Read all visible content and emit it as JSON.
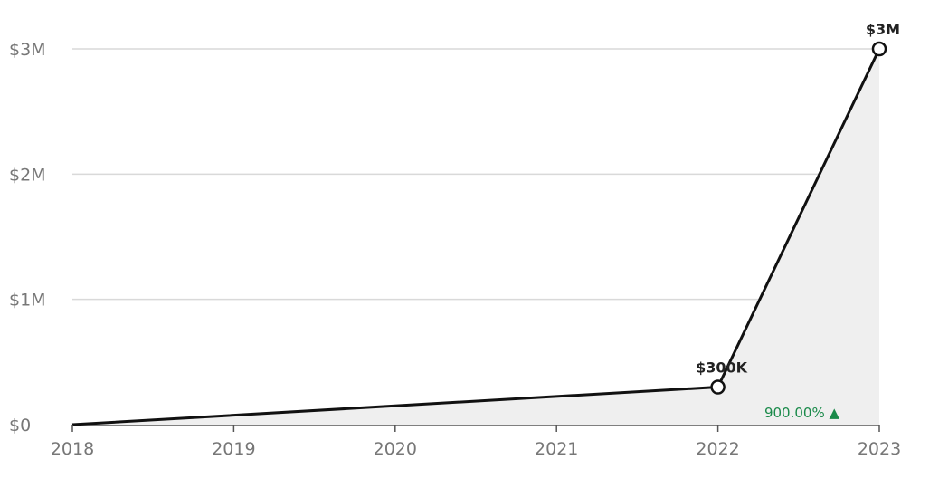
{
  "chart_data": {
    "type": "area",
    "x": [
      "2018",
      "2019",
      "2020",
      "2021",
      "2022",
      "2023"
    ],
    "y_ticks": [
      {
        "value": 0,
        "label": "$0"
      },
      {
        "value": 1000000,
        "label": "$1M"
      },
      {
        "value": 2000000,
        "label": "$2M"
      },
      {
        "value": 3000000,
        "label": "$3M"
      }
    ],
    "ylim": [
      0,
      3000000
    ],
    "grid": true,
    "series": [
      {
        "points": [
          {
            "x": "2018",
            "y": 0
          },
          {
            "x": "2022",
            "y": 300000
          },
          {
            "x": "2023",
            "y": 3000000
          }
        ],
        "line_color": "#111111",
        "fill_color": "#efefef"
      }
    ],
    "data_labels": [
      {
        "x": "2022",
        "y": 300000,
        "text": "$300K"
      },
      {
        "x": "2023",
        "y": 3000000,
        "text": "$3M"
      }
    ],
    "growth_annotation": {
      "text": "900.00% ▲",
      "color": "#1a8a4a"
    },
    "colors": {
      "grid": "#d9d9d9",
      "axis_text": "#777777",
      "label_text": "#222222"
    }
  }
}
